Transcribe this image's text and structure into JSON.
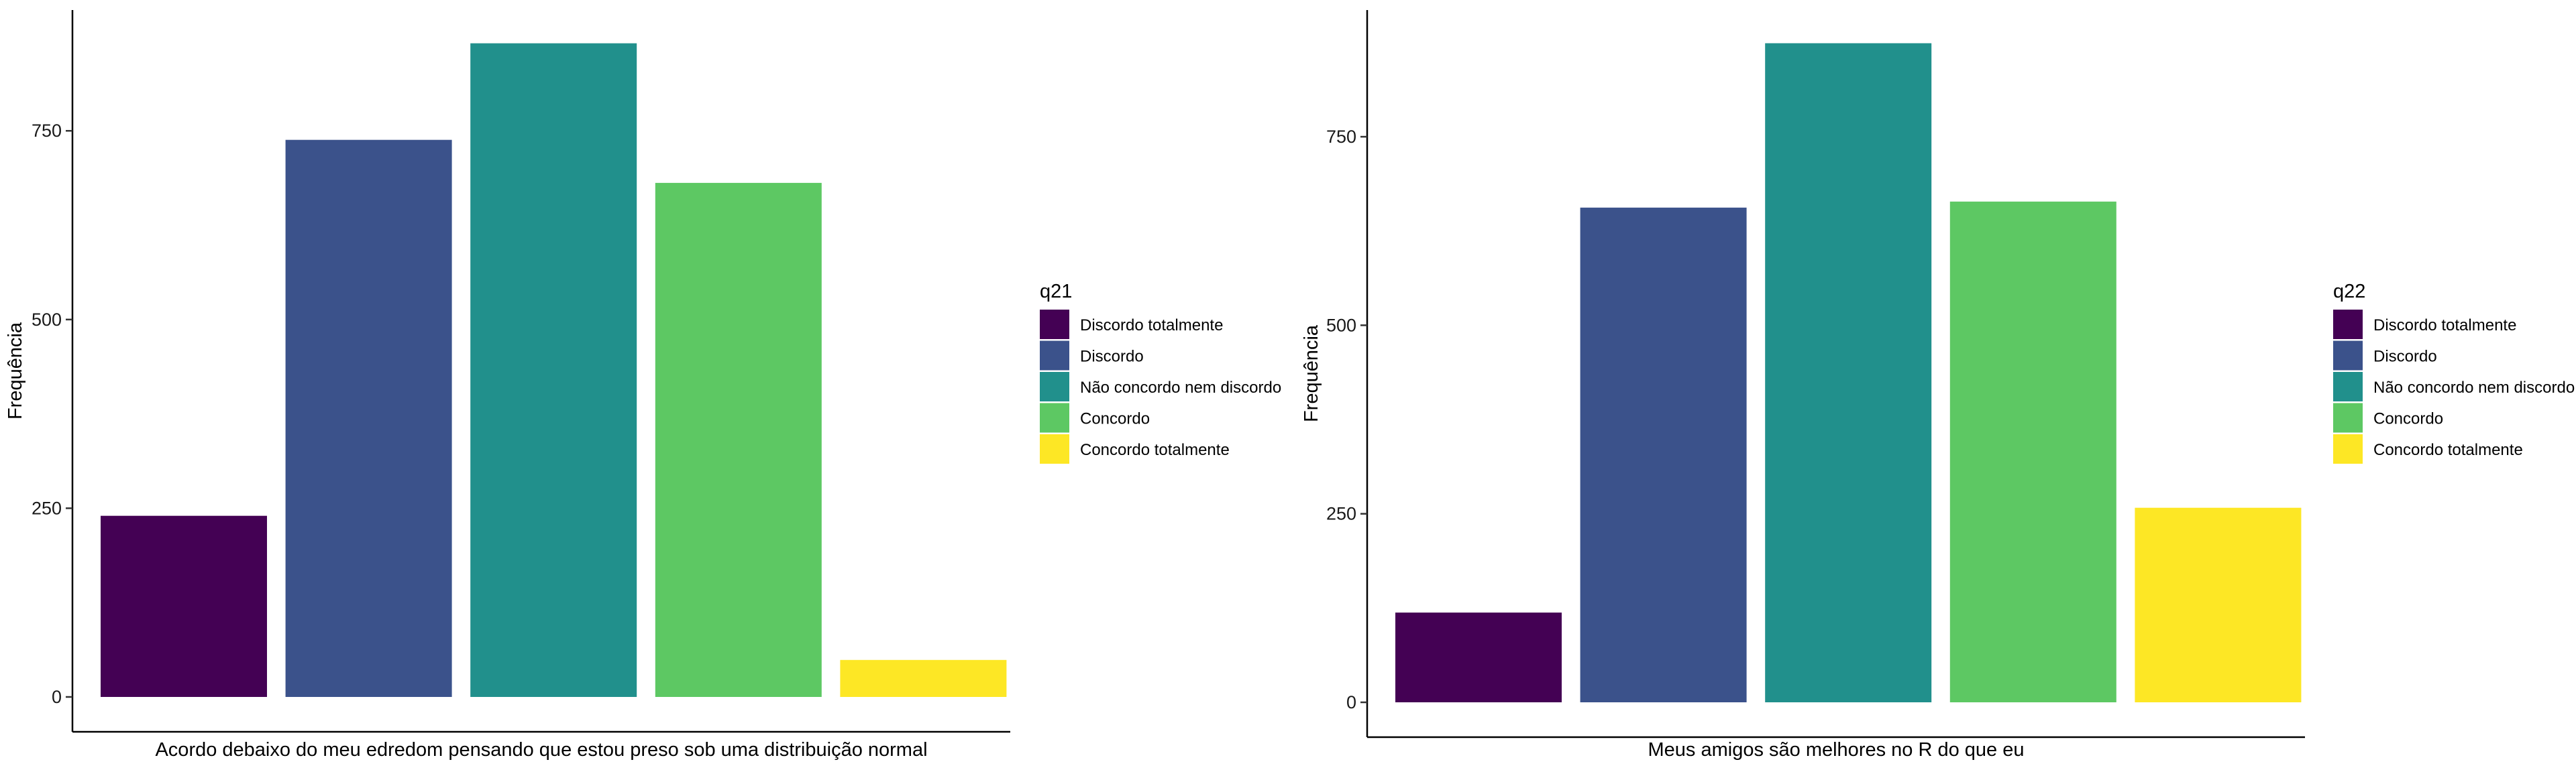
{
  "chart_data": [
    {
      "type": "bar",
      "categories": [
        "Discordo totalmente",
        "Discordo",
        "Não concordo nem discordo",
        "Concordo",
        "Concordo totalmente"
      ],
      "values": [
        240,
        738,
        866,
        681,
        49
      ],
      "colors": [
        "#440154",
        "#3B528B",
        "#21908C",
        "#5DC863",
        "#FDE725"
      ],
      "xlabel": "Acordo debaixo do meu edredom pensando que estou preso sob uma distribuição normal",
      "ylabel": "Frequência",
      "yticks": [
        0,
        250,
        500,
        750
      ],
      "ylim": [
        0,
        910
      ],
      "legend_title": "q21",
      "legend_position": "right",
      "grid": false
    },
    {
      "type": "bar",
      "categories": [
        "Discordo totalmente",
        "Discordo",
        "Não concordo nem discordo",
        "Concordo",
        "Concordo totalmente"
      ],
      "values": [
        119,
        656,
        874,
        664,
        258
      ],
      "colors": [
        "#440154",
        "#3B528B",
        "#21908C",
        "#5DC863",
        "#FDE725"
      ],
      "xlabel": "Meus amigos são melhores no R do que eu",
      "ylabel": "Frequência",
      "yticks": [
        0,
        250,
        500,
        750
      ],
      "ylim": [
        0,
        918
      ],
      "legend_title": "q22",
      "legend_position": "right",
      "grid": false
    }
  ]
}
